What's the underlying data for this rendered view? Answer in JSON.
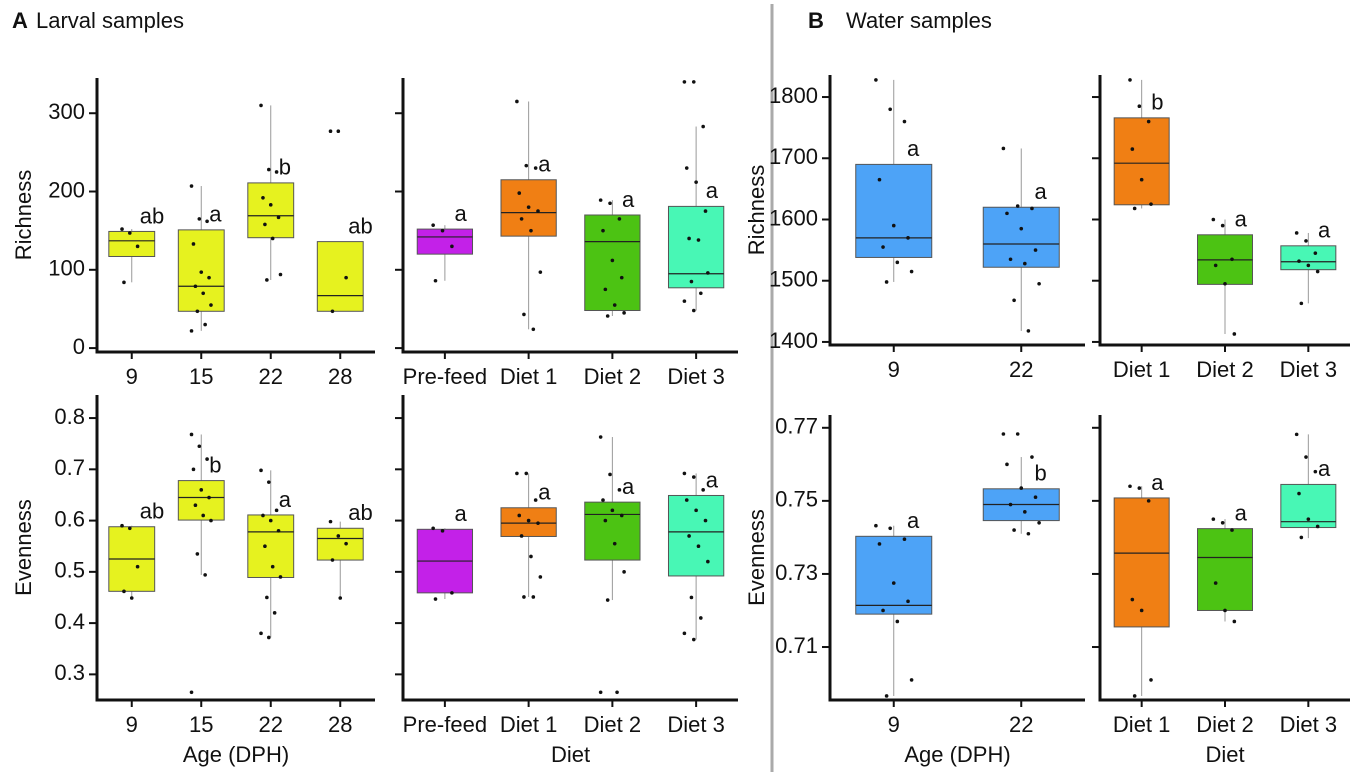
{
  "panels": [
    {
      "letter": "A",
      "title": "Larval samples"
    },
    {
      "letter": "B",
      "title": "Water samples"
    }
  ],
  "chart_data": [
    {
      "type": "box",
      "ylabel": "Richness",
      "categories": [
        "9",
        "15",
        "22",
        "28"
      ],
      "ylim": [
        -5,
        345
      ],
      "yticks": [
        0,
        100,
        200,
        300
      ],
      "boxes": [
        {
          "color": "#e6f21f",
          "low": 84,
          "q1": 117,
          "median": 137,
          "q3": 149,
          "high": 152,
          "letter": "ab",
          "points": [
            152,
            147,
            130,
            84
          ]
        },
        {
          "color": "#e6f21f",
          "low": 22,
          "q1": 47,
          "median": 79,
          "q3": 151,
          "high": 207,
          "letter": "a",
          "points": [
            207,
            165,
            162,
            133,
            97,
            90,
            79,
            70,
            55,
            47,
            30,
            22
          ]
        },
        {
          "color": "#e6f21f",
          "low": 87,
          "q1": 141,
          "median": 169,
          "q3": 211,
          "high": 310,
          "letter": "b",
          "points": [
            310,
            228,
            225,
            192,
            183,
            167,
            158,
            140,
            94,
            87
          ]
        },
        {
          "color": "#e6f21f",
          "low": 47,
          "q1": 47,
          "median": 67,
          "q3": 136,
          "high": 136,
          "letter": "ab",
          "points": [
            277,
            277,
            90,
            47
          ]
        }
      ]
    },
    {
      "type": "box",
      "categories": [
        "Pre-feed",
        "Diet 1",
        "Diet 2",
        "Diet 3"
      ],
      "ylim": [
        -5,
        345
      ],
      "yticks": [
        0,
        100,
        200,
        300
      ],
      "ytick_labels": false,
      "boxes": [
        {
          "color": "#c321e8",
          "low": 86,
          "q1": 120,
          "median": 142,
          "q3": 152,
          "high": 157,
          "letter": "a",
          "points": [
            157,
            150,
            130,
            86
          ]
        },
        {
          "color": "#f07f14",
          "low": 24,
          "q1": 143,
          "median": 173,
          "q3": 215,
          "high": 315,
          "letter": "a",
          "points": [
            315,
            233,
            230,
            198,
            180,
            175,
            165,
            150,
            97,
            43,
            24
          ]
        },
        {
          "color": "#4cc313",
          "low": 41,
          "q1": 48,
          "median": 136,
          "q3": 170,
          "high": 189,
          "letter": "a",
          "points": [
            189,
            185,
            165,
            150,
            112,
            90,
            75,
            55,
            45,
            41
          ]
        },
        {
          "color": "#48f7b5",
          "low": 48,
          "q1": 77,
          "median": 95,
          "q3": 181,
          "high": 283,
          "letter": "a",
          "points": [
            340,
            340,
            283,
            230,
            212,
            175,
            140,
            138,
            96,
            85,
            70,
            60,
            48
          ]
        }
      ]
    },
    {
      "type": "box",
      "ylabel": "Evenness",
      "xlabel": "Age (DPH)",
      "categories": [
        "9",
        "15",
        "22",
        "28"
      ],
      "ylim": [
        0.25,
        0.845
      ],
      "yticks": [
        0.3,
        0.4,
        0.5,
        0.6,
        0.7,
        0.8
      ],
      "boxes": [
        {
          "color": "#e6f21f",
          "low": 0.449,
          "q1": 0.462,
          "median": 0.525,
          "q3": 0.588,
          "high": 0.59,
          "letter": "ab",
          "points": [
            0.59,
            0.585,
            0.51,
            0.462,
            0.449
          ]
        },
        {
          "color": "#e6f21f",
          "low": 0.494,
          "q1": 0.601,
          "median": 0.645,
          "q3": 0.678,
          "high": 0.768,
          "letter": "b",
          "points": [
            0.768,
            0.745,
            0.72,
            0.7,
            0.66,
            0.645,
            0.63,
            0.61,
            0.6,
            0.535,
            0.494,
            0.265
          ]
        },
        {
          "color": "#e6f21f",
          "low": 0.372,
          "q1": 0.489,
          "median": 0.578,
          "q3": 0.611,
          "high": 0.698,
          "letter": "a",
          "points": [
            0.698,
            0.675,
            0.62,
            0.61,
            0.6,
            0.58,
            0.55,
            0.51,
            0.49,
            0.45,
            0.42,
            0.38,
            0.372
          ]
        },
        {
          "color": "#e6f21f",
          "low": 0.449,
          "q1": 0.523,
          "median": 0.565,
          "q3": 0.585,
          "high": 0.598,
          "letter": "ab",
          "points": [
            0.598,
            0.57,
            0.555,
            0.523,
            0.449
          ]
        }
      ]
    },
    {
      "type": "box",
      "xlabel": "Diet",
      "categories": [
        "Pre-feed",
        "Diet 1",
        "Diet 2",
        "Diet 3"
      ],
      "ylim": [
        0.25,
        0.845
      ],
      "yticks": [
        0.3,
        0.4,
        0.5,
        0.6,
        0.7,
        0.8
      ],
      "ytick_labels": false,
      "boxes": [
        {
          "color": "#c321e8",
          "low": 0.447,
          "q1": 0.459,
          "median": 0.521,
          "q3": 0.583,
          "high": 0.585,
          "letter": "a",
          "points": [
            0.585,
            0.58,
            0.459,
            0.447
          ]
        },
        {
          "color": "#f07f14",
          "low": 0.451,
          "q1": 0.569,
          "median": 0.595,
          "q3": 0.625,
          "high": 0.692,
          "letter": "a",
          "points": [
            0.692,
            0.692,
            0.64,
            0.61,
            0.6,
            0.595,
            0.57,
            0.53,
            0.49,
            0.451,
            0.451
          ]
        },
        {
          "color": "#4cc313",
          "low": 0.445,
          "q1": 0.523,
          "median": 0.612,
          "q3": 0.636,
          "high": 0.763,
          "letter": "a",
          "points": [
            0.763,
            0.69,
            0.66,
            0.64,
            0.62,
            0.61,
            0.6,
            0.555,
            0.5,
            0.445,
            0.265,
            0.265
          ]
        },
        {
          "color": "#48f7b5",
          "low": 0.368,
          "q1": 0.492,
          "median": 0.578,
          "q3": 0.649,
          "high": 0.692,
          "letter": "a",
          "points": [
            0.692,
            0.685,
            0.66,
            0.64,
            0.62,
            0.6,
            0.57,
            0.55,
            0.52,
            0.45,
            0.41,
            0.38,
            0.368
          ]
        }
      ]
    },
    {
      "type": "box",
      "ylabel": "Richness",
      "categories": [
        "9",
        "22"
      ],
      "ylim": [
        1395,
        1836
      ],
      "yticks": [
        1400,
        1500,
        1600,
        1700,
        1800
      ],
      "boxes": [
        {
          "color": "#4da3f7",
          "low": 1498,
          "q1": 1538,
          "median": 1570,
          "q3": 1690,
          "high": 1828,
          "letter": "a",
          "points": [
            1828,
            1780,
            1760,
            1665,
            1590,
            1570,
            1555,
            1530,
            1515,
            1498
          ]
        },
        {
          "color": "#4da3f7",
          "low": 1418,
          "q1": 1522,
          "median": 1560,
          "q3": 1620,
          "high": 1716,
          "letter": "a",
          "points": [
            1716,
            1622,
            1618,
            1610,
            1585,
            1550,
            1535,
            1528,
            1495,
            1468,
            1418
          ]
        }
      ]
    },
    {
      "type": "box",
      "categories": [
        "Diet 1",
        "Diet 2",
        "Diet 3"
      ],
      "ylim": [
        1395,
        1836
      ],
      "yticks": [
        1400,
        1500,
        1600,
        1700,
        1800
      ],
      "ytick_labels": false,
      "boxes": [
        {
          "color": "#f07f14",
          "low": 1618,
          "q1": 1624,
          "median": 1692,
          "q3": 1766,
          "high": 1828,
          "letter": "b",
          "points": [
            1828,
            1785,
            1760,
            1715,
            1665,
            1625,
            1618
          ]
        },
        {
          "color": "#4cc313",
          "low": 1413,
          "q1": 1494,
          "median": 1534,
          "q3": 1575,
          "high": 1600,
          "letter": "a",
          "points": [
            1600,
            1590,
            1535,
            1525,
            1495,
            1413
          ]
        },
        {
          "color": "#48f7b5",
          "low": 1463,
          "q1": 1518,
          "median": 1531,
          "q3": 1557,
          "high": 1578,
          "letter": "a",
          "points": [
            1578,
            1565,
            1545,
            1532,
            1525,
            1515,
            1463
          ]
        }
      ]
    },
    {
      "type": "box",
      "ylabel": "Evenness",
      "xlabel": "Age (DPH)",
      "categories": [
        "9",
        "22"
      ],
      "ylim": [
        0.6955,
        0.7735
      ],
      "yticks": [
        0.71,
        0.73,
        0.75,
        0.77
      ],
      "boxes": [
        {
          "color": "#4da3f7",
          "low": 0.6966,
          "q1": 0.719,
          "median": 0.7214,
          "q3": 0.7403,
          "high": 0.7432,
          "letter": "a",
          "points": [
            0.7432,
            0.7425,
            0.7395,
            0.7382,
            0.7275,
            0.7225,
            0.72,
            0.717,
            0.701,
            0.6966
          ]
        },
        {
          "color": "#4da3f7",
          "low": 0.741,
          "q1": 0.7446,
          "median": 0.749,
          "q3": 0.7533,
          "high": 0.762,
          "letter": "b",
          "points": [
            0.7683,
            0.7683,
            0.762,
            0.76,
            0.7535,
            0.751,
            0.749,
            0.747,
            0.744,
            0.742,
            0.741
          ]
        }
      ]
    },
    {
      "type": "box",
      "xlabel": "Diet",
      "categories": [
        "Diet 1",
        "Diet 2",
        "Diet 3"
      ],
      "ylim": [
        0.6955,
        0.7735
      ],
      "yticks": [
        0.71,
        0.73,
        0.75,
        0.77
      ],
      "ytick_labels": false,
      "boxes": [
        {
          "color": "#f07f14",
          "low": 0.6966,
          "q1": 0.7155,
          "median": 0.7357,
          "q3": 0.7508,
          "high": 0.754,
          "letter": "a",
          "points": [
            0.754,
            0.7535,
            0.75,
            0.723,
            0.72,
            0.701,
            0.6966
          ]
        },
        {
          "color": "#4cc313",
          "low": 0.717,
          "q1": 0.72,
          "median": 0.7345,
          "q3": 0.7424,
          "high": 0.745,
          "letter": "a",
          "points": [
            0.745,
            0.744,
            0.742,
            0.7275,
            0.72,
            0.717
          ]
        },
        {
          "color": "#48f7b5",
          "low": 0.7398,
          "q1": 0.7427,
          "median": 0.7443,
          "q3": 0.7545,
          "high": 0.7682,
          "letter": "a",
          "points": [
            0.7682,
            0.762,
            0.758,
            0.752,
            0.745,
            0.743,
            0.74
          ]
        }
      ]
    }
  ]
}
